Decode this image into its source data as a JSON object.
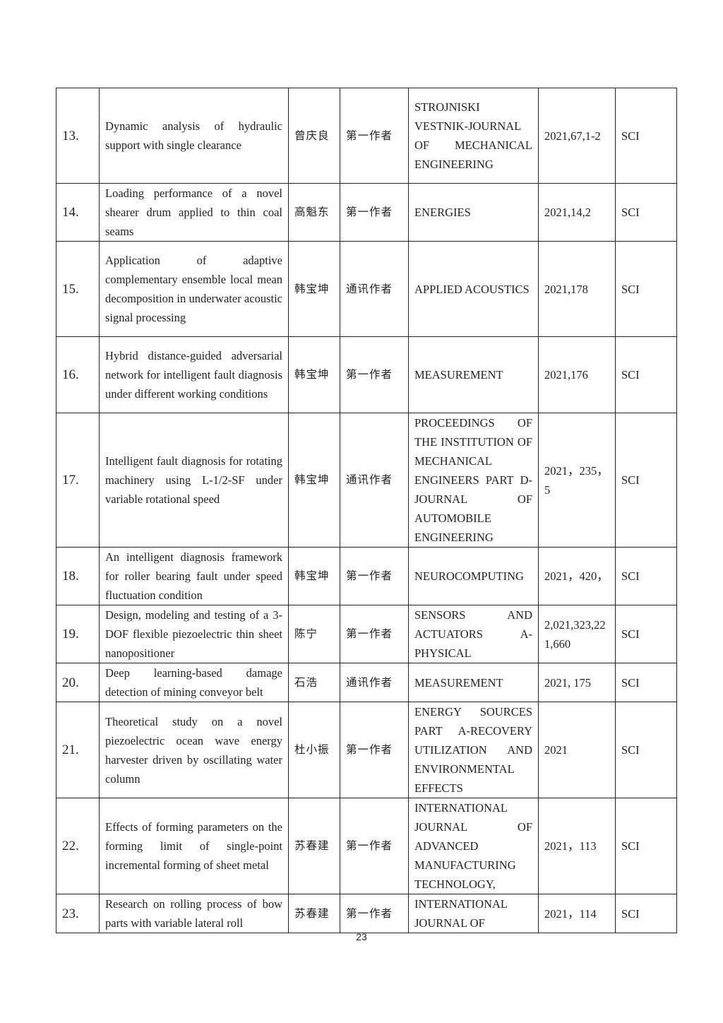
{
  "rows": [
    {
      "no": "13.",
      "title": "Dynamic analysis of hydraulic support with single clearance",
      "author": "曾庆良",
      "role": "第一作者",
      "journal": "STROJNISKI VESTNIK-JOURNAL OF MECHANICAL ENGINEERING",
      "volume": "2021,67,1-2",
      "index": "SCI"
    },
    {
      "no": "14.",
      "title": "Loading performance of a novel shearer drum applied to thin coal seams",
      "author": "高魁东",
      "role": "第一作者",
      "journal": "ENERGIES",
      "volume": "2021,14,2",
      "index": "SCI"
    },
    {
      "no": "15.",
      "title": "Application of adaptive complementary ensemble local mean decomposition in underwater acoustic signal processing",
      "author": "韩宝坤",
      "role": "通讯作者",
      "journal": "APPLIED ACOUSTICS",
      "volume": "2021,178",
      "index": "SCI"
    },
    {
      "no": "16.",
      "title": "Hybrid distance-guided adversarial network for intelligent fault diagnosis under different working conditions",
      "author": "韩宝坤",
      "role": "第一作者",
      "journal": "MEASUREMENT",
      "volume": "2021,176",
      "index": "SCI"
    },
    {
      "no": "17.",
      "title": "Intelligent fault diagnosis for rotating machinery using L-1/2-SF under variable rotational speed",
      "author": "韩宝坤",
      "role": "通讯作者",
      "journal": "PROCEEDINGS OF THE INSTITUTION OF MECHANICAL ENGINEERS PART D-JOURNAL OF AUTOMOBILE ENGINEERING",
      "volume": "2021，235，5",
      "index": "SCI"
    },
    {
      "no": "18.",
      "title": "An intelligent diagnosis framework for roller bearing fault under speed fluctuation condition",
      "author": "韩宝坤",
      "role": "第一作者",
      "journal": "NEUROCOMPUTING",
      "volume": "2021，420，",
      "index": "SCI"
    },
    {
      "no": "19.",
      "title": "Design, modeling and testing of a 3-DOF flexible piezoelectric thin sheet nanopositioner",
      "author": "陈宁",
      "role": "第一作者",
      "journal": "SENSORS AND ACTUATORS A-PHYSICAL",
      "volume": "2,021,323,221,660",
      "index": "SCI"
    },
    {
      "no": "20.",
      "title": "Deep learning-based damage detection of mining conveyor belt",
      "author": "石浩",
      "role": "通讯作者",
      "journal": "MEASUREMENT",
      "volume": "2021, 175",
      "index": "SCI"
    },
    {
      "no": "21.",
      "title": "Theoretical study on a novel piezoelectric ocean wave energy harvester driven by oscillating water column",
      "author": "杜小振",
      "role": "第一作者",
      "journal": "ENERGY SOURCES PART A-RECOVERY UTILIZATION AND ENVIRONMENTAL EFFECTS",
      "volume": "2021",
      "index": "SCI"
    },
    {
      "no": "22.",
      "title": "Effects of forming parameters on the forming limit of single-point incremental forming of sheet metal",
      "author": "苏春建",
      "role": "第一作者",
      "journal": "INTERNATIONAL JOURNAL OF ADVANCED MANUFACTURING TECHNOLOGY,",
      "volume": "2021，113",
      "index": "SCI"
    },
    {
      "no": "23.",
      "title": "Research on rolling process of bow parts with variable lateral roll",
      "author": "苏春建",
      "role": "第一作者",
      "journal": "INTERNATIONAL JOURNAL OF",
      "volume": "2021，114",
      "index": "SCI"
    }
  ],
  "page_number": "23"
}
